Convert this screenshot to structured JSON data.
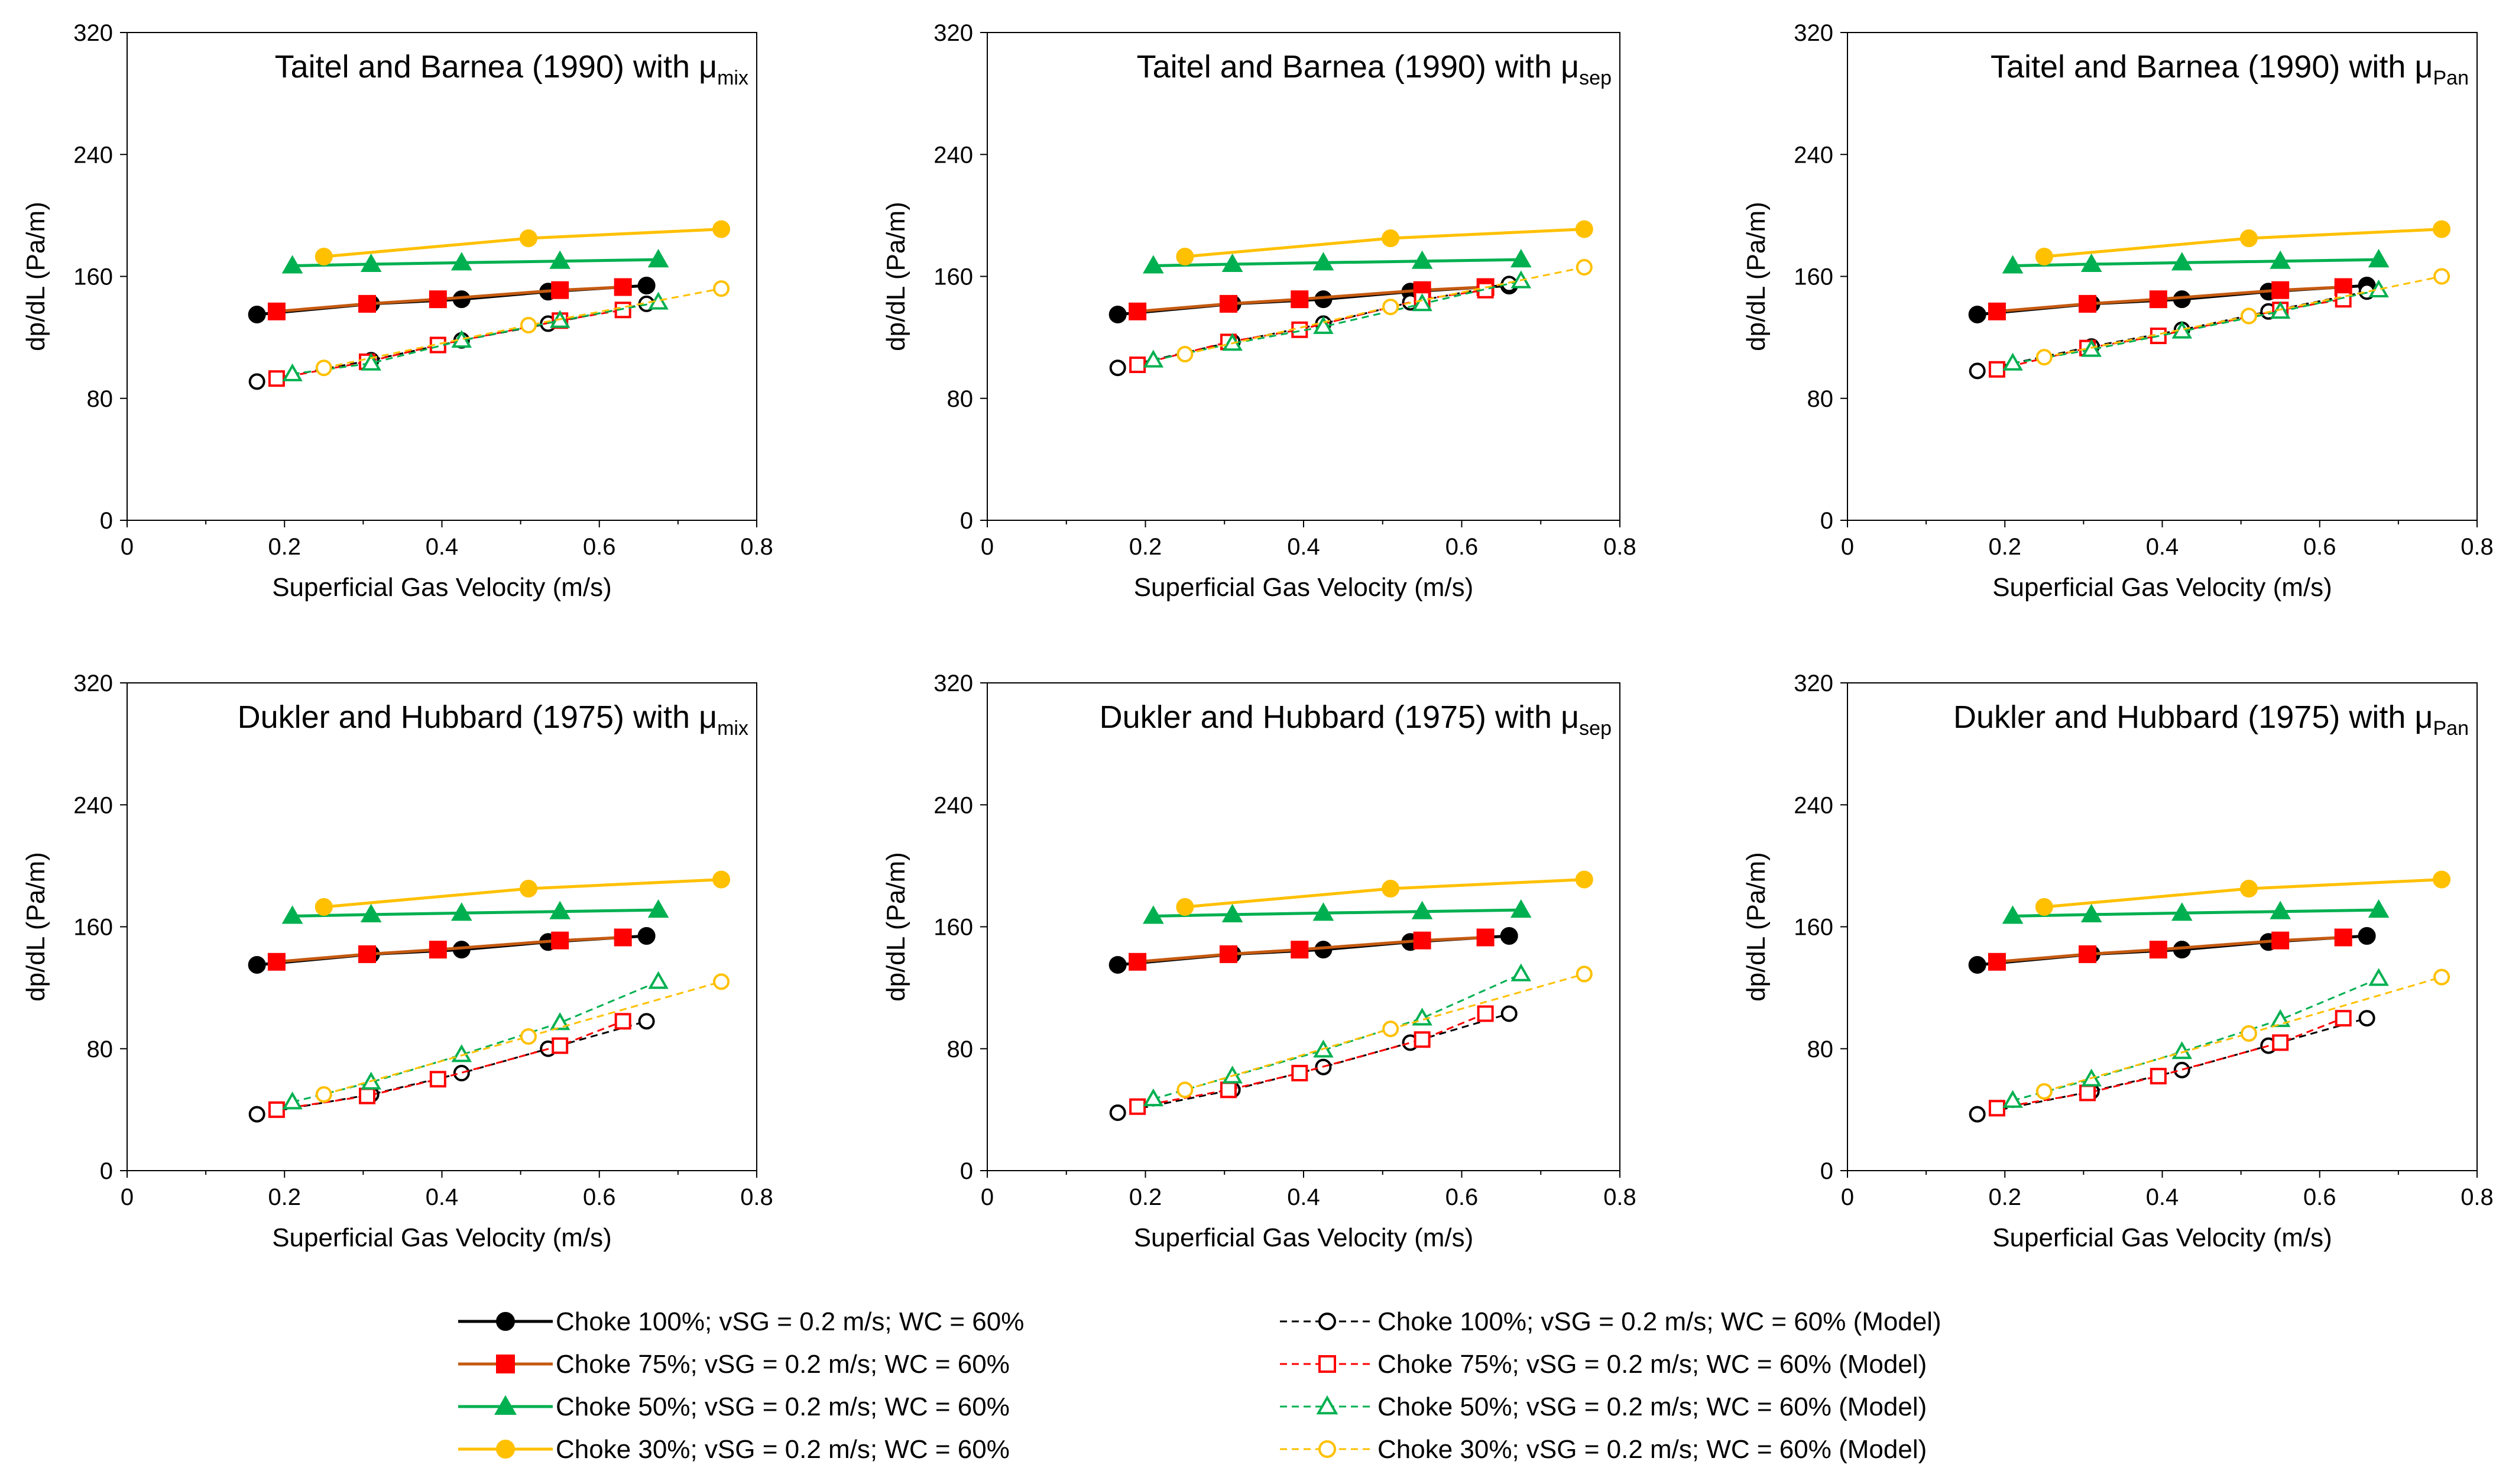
{
  "figure": {
    "legend": {
      "entries": [
        {
          "label": "Choke 100%; vSG = 0.2 m/s; WC = 60%",
          "color": "#000000",
          "marker": "circle",
          "filled": true,
          "dashed": false
        },
        {
          "label": "Choke 75%; vSG = 0.2 m/s; WC = 60%",
          "color": "#ff0000",
          "marker": "square",
          "filled": true,
          "dashed": false,
          "line_color": "#c55a11"
        },
        {
          "label": "Choke 50%; vSG = 0.2 m/s; WC = 60%",
          "color": "#00b050",
          "marker": "triangle",
          "filled": true,
          "dashed": false
        },
        {
          "label": "Choke 30%; vSG = 0.2 m/s; WC = 60%",
          "color": "#ffc000",
          "marker": "circle",
          "filled": true,
          "dashed": false
        },
        {
          "label": "Choke 100%; vSG = 0.2 m/s; WC = 60% (Model)",
          "color": "#000000",
          "marker": "circle",
          "filled": false,
          "dashed": true
        },
        {
          "label": "Choke 75%; vSG = 0.2 m/s; WC = 60% (Model)",
          "color": "#ff0000",
          "marker": "square",
          "filled": false,
          "dashed": true
        },
        {
          "label": "Choke 50%; vSG = 0.2 m/s; WC = 60% (Model)",
          "color": "#00b050",
          "marker": "triangle",
          "filled": false,
          "dashed": true
        },
        {
          "label": "Choke 30%; vSG = 0.2 m/s; WC = 60% (Model)",
          "color": "#ffc000",
          "marker": "circle",
          "filled": false,
          "dashed": true
        }
      ]
    }
  },
  "chart_data": [
    {
      "type": "line",
      "title": "Taitel and Barnea (1990) with μ",
      "title_subscript": "mix",
      "xlabel": "Superficial Gas Velocity (m/s)",
      "ylabel": "dp/dL  (Pa/m)",
      "xlim": [
        0,
        0.8
      ],
      "ylim": [
        0,
        320
      ],
      "xticks": [
        "0",
        "0.2",
        "0.4",
        "0.6",
        "0.8"
      ],
      "yticks": [
        "0",
        "80",
        "160",
        "240",
        "320"
      ],
      "series": [
        {
          "name": "Choke 100%",
          "x": [
            0.165,
            0.31,
            0.425,
            0.535,
            0.66
          ],
          "y": [
            135,
            142,
            145,
            150,
            154
          ]
        },
        {
          "name": "Choke 75%",
          "x": [
            0.19,
            0.305,
            0.395,
            0.55,
            0.63
          ],
          "y": [
            137,
            142,
            145,
            151,
            153
          ]
        },
        {
          "name": "Choke 50%",
          "x": [
            0.21,
            0.31,
            0.425,
            0.55,
            0.675
          ],
          "y": [
            167,
            168,
            169,
            170,
            171
          ]
        },
        {
          "name": "Choke 30%",
          "x": [
            0.25,
            0.51,
            0.755
          ],
          "y": [
            173,
            185,
            191
          ]
        },
        {
          "name": "Choke 100% (Model)",
          "x": [
            0.165,
            0.31,
            0.425,
            0.535,
            0.66
          ],
          "y": [
            91,
            105,
            118,
            129,
            142
          ]
        },
        {
          "name": "Choke 75% (Model)",
          "x": [
            0.19,
            0.305,
            0.395,
            0.55,
            0.63
          ],
          "y": [
            93,
            104,
            115,
            131,
            138
          ]
        },
        {
          "name": "Choke 50% (Model)",
          "x": [
            0.21,
            0.31,
            0.425,
            0.55,
            0.675
          ],
          "y": [
            96,
            103,
            118,
            131,
            143
          ]
        },
        {
          "name": "Choke 30% (Model)",
          "x": [
            0.25,
            0.51,
            0.755
          ],
          "y": [
            100,
            128,
            152
          ]
        }
      ]
    },
    {
      "type": "line",
      "title": "Taitel and Barnea (1990) with μ",
      "title_subscript": "sep",
      "xlabel": "Superficial Gas Velocity (m/s)",
      "ylabel": "dp/dL  (Pa/m)",
      "xlim": [
        0,
        0.8
      ],
      "ylim": [
        0,
        320
      ],
      "xticks": [
        "0",
        "0.2",
        "0.4",
        "0.6",
        "0.8"
      ],
      "yticks": [
        "0",
        "80",
        "160",
        "240",
        "320"
      ],
      "series": [
        {
          "name": "Choke 100%",
          "x": [
            0.165,
            0.31,
            0.425,
            0.535,
            0.66
          ],
          "y": [
            135,
            142,
            145,
            150,
            154
          ]
        },
        {
          "name": "Choke 75%",
          "x": [
            0.19,
            0.305,
            0.395,
            0.55,
            0.63
          ],
          "y": [
            137,
            142,
            145,
            151,
            153
          ]
        },
        {
          "name": "Choke 50%",
          "x": [
            0.21,
            0.31,
            0.425,
            0.55,
            0.675
          ],
          "y": [
            167,
            168,
            169,
            170,
            171
          ]
        },
        {
          "name": "Choke 30%",
          "x": [
            0.25,
            0.51,
            0.755
          ],
          "y": [
            173,
            185,
            191
          ]
        },
        {
          "name": "Choke 100% (Model)",
          "x": [
            0.165,
            0.31,
            0.425,
            0.535,
            0.66
          ],
          "y": [
            100,
            117,
            129,
            143,
            155
          ]
        },
        {
          "name": "Choke 75% (Model)",
          "x": [
            0.19,
            0.305,
            0.395,
            0.55,
            0.63
          ],
          "y": [
            102,
            117,
            125,
            145,
            151
          ]
        },
        {
          "name": "Choke 50% (Model)",
          "x": [
            0.21,
            0.31,
            0.425,
            0.55,
            0.675
          ],
          "y": [
            105,
            116,
            127,
            142,
            157
          ]
        },
        {
          "name": "Choke 30% (Model)",
          "x": [
            0.25,
            0.51,
            0.755
          ],
          "y": [
            109,
            140,
            166
          ]
        }
      ]
    },
    {
      "type": "line",
      "title": "Taitel and Barnea (1990) with μ",
      "title_subscript": "Pan",
      "xlabel": "Superficial Gas Velocity (m/s)",
      "ylabel": "dp/dL  (Pa/m)",
      "xlim": [
        0,
        0.8
      ],
      "ylim": [
        0,
        320
      ],
      "xticks": [
        "0",
        "0.2",
        "0.4",
        "0.6",
        "0.8"
      ],
      "yticks": [
        "0",
        "80",
        "160",
        "240",
        "320"
      ],
      "series": [
        {
          "name": "Choke 100%",
          "x": [
            0.165,
            0.31,
            0.425,
            0.535,
            0.66
          ],
          "y": [
            135,
            142,
            145,
            150,
            154
          ]
        },
        {
          "name": "Choke 75%",
          "x": [
            0.19,
            0.305,
            0.395,
            0.55,
            0.63
          ],
          "y": [
            137,
            142,
            145,
            151,
            153
          ]
        },
        {
          "name": "Choke 50%",
          "x": [
            0.21,
            0.31,
            0.425,
            0.55,
            0.675
          ],
          "y": [
            167,
            168,
            169,
            170,
            171
          ]
        },
        {
          "name": "Choke 30%",
          "x": [
            0.25,
            0.51,
            0.755
          ],
          "y": [
            173,
            185,
            191
          ]
        },
        {
          "name": "Choke 100% (Model)",
          "x": [
            0.165,
            0.31,
            0.425,
            0.535,
            0.66
          ],
          "y": [
            98,
            114,
            125,
            137,
            150
          ]
        },
        {
          "name": "Choke 75% (Model)",
          "x": [
            0.19,
            0.305,
            0.395,
            0.55,
            0.63
          ],
          "y": [
            99,
            113,
            121,
            138,
            145
          ]
        },
        {
          "name": "Choke 50% (Model)",
          "x": [
            0.21,
            0.31,
            0.425,
            0.55,
            0.675
          ],
          "y": [
            103,
            112,
            124,
            137,
            151
          ]
        },
        {
          "name": "Choke 30% (Model)",
          "x": [
            0.25,
            0.51,
            0.755
          ],
          "y": [
            107,
            134,
            160
          ]
        }
      ]
    },
    {
      "type": "line",
      "title": "Dukler and Hubbard  (1975) with μ",
      "title_subscript": "mix",
      "xlabel": "Superficial Gas Velocity (m/s)",
      "ylabel": "dp/dL  (Pa/m)",
      "xlim": [
        0,
        0.8
      ],
      "ylim": [
        0,
        320
      ],
      "xticks": [
        "0",
        "0.2",
        "0.4",
        "0.6",
        "0.8"
      ],
      "yticks": [
        "0",
        "80",
        "160",
        "240",
        "320"
      ],
      "series": [
        {
          "name": "Choke 100%",
          "x": [
            0.165,
            0.31,
            0.425,
            0.535,
            0.66
          ],
          "y": [
            135,
            142,
            145,
            150,
            154
          ]
        },
        {
          "name": "Choke 75%",
          "x": [
            0.19,
            0.305,
            0.395,
            0.55,
            0.63
          ],
          "y": [
            137,
            142,
            145,
            151,
            153
          ]
        },
        {
          "name": "Choke 50%",
          "x": [
            0.21,
            0.31,
            0.425,
            0.55,
            0.675
          ],
          "y": [
            167,
            168,
            169,
            170,
            171
          ]
        },
        {
          "name": "Choke 30%",
          "x": [
            0.25,
            0.51,
            0.755
          ],
          "y": [
            173,
            185,
            191
          ]
        },
        {
          "name": "Choke 100% (Model)",
          "x": [
            0.165,
            0.31,
            0.425,
            0.535,
            0.66
          ],
          "y": [
            37,
            50,
            64,
            80,
            98
          ]
        },
        {
          "name": "Choke 75% (Model)",
          "x": [
            0.19,
            0.305,
            0.395,
            0.55,
            0.63
          ],
          "y": [
            40,
            49,
            60,
            82,
            98
          ]
        },
        {
          "name": "Choke 50% (Model)",
          "x": [
            0.21,
            0.31,
            0.425,
            0.55,
            0.675
          ],
          "y": [
            45,
            58,
            76,
            97,
            124
          ]
        },
        {
          "name": "Choke 30% (Model)",
          "x": [
            0.25,
            0.51,
            0.755
          ],
          "y": [
            50,
            88,
            124
          ]
        }
      ]
    },
    {
      "type": "line",
      "title": "Dukler and Hubbard  (1975) with μ",
      "title_subscript": "sep",
      "xlabel": "Superficial Gas Velocity (m/s)",
      "ylabel": "dp/dL  (Pa/m)",
      "xlim": [
        0,
        0.8
      ],
      "ylim": [
        0,
        320
      ],
      "xticks": [
        "0",
        "0.2",
        "0.4",
        "0.6",
        "0.8"
      ],
      "yticks": [
        "0",
        "80",
        "160",
        "240",
        "320"
      ],
      "series": [
        {
          "name": "Choke 100%",
          "x": [
            0.165,
            0.31,
            0.425,
            0.535,
            0.66
          ],
          "y": [
            135,
            142,
            145,
            150,
            154
          ]
        },
        {
          "name": "Choke 75%",
          "x": [
            0.19,
            0.305,
            0.395,
            0.55,
            0.63
          ],
          "y": [
            137,
            142,
            145,
            151,
            153
          ]
        },
        {
          "name": "Choke 50%",
          "x": [
            0.21,
            0.31,
            0.425,
            0.55,
            0.675
          ],
          "y": [
            167,
            168,
            169,
            170,
            171
          ]
        },
        {
          "name": "Choke 30%",
          "x": [
            0.25,
            0.51,
            0.755
          ],
          "y": [
            173,
            185,
            191
          ]
        },
        {
          "name": "Choke 100% (Model)",
          "x": [
            0.165,
            0.31,
            0.425,
            0.535,
            0.66
          ],
          "y": [
            38,
            53,
            68,
            84,
            103
          ]
        },
        {
          "name": "Choke 75% (Model)",
          "x": [
            0.19,
            0.305,
            0.395,
            0.55,
            0.63
          ],
          "y": [
            42,
            53,
            64,
            86,
            103
          ]
        },
        {
          "name": "Choke 50% (Model)",
          "x": [
            0.21,
            0.31,
            0.425,
            0.55,
            0.675
          ],
          "y": [
            47,
            62,
            79,
            100,
            129
          ]
        },
        {
          "name": "Choke 30% (Model)",
          "x": [
            0.25,
            0.51,
            0.755
          ],
          "y": [
            53,
            93,
            129
          ]
        }
      ]
    },
    {
      "type": "line",
      "title": "Dukler and Hubbard  (1975) with μ",
      "title_subscript": "Pan",
      "xlabel": "Superficial Gas Velocity (m/s)",
      "ylabel": "dp/dL  (Pa/m)",
      "xlim": [
        0,
        0.8
      ],
      "ylim": [
        0,
        320
      ],
      "xticks": [
        "0",
        "0.2",
        "0.4",
        "0.6",
        "0.8"
      ],
      "yticks": [
        "0",
        "80",
        "160",
        "240",
        "320"
      ],
      "series": [
        {
          "name": "Choke 100%",
          "x": [
            0.165,
            0.31,
            0.425,
            0.535,
            0.66
          ],
          "y": [
            135,
            142,
            145,
            150,
            154
          ]
        },
        {
          "name": "Choke 75%",
          "x": [
            0.19,
            0.305,
            0.395,
            0.55,
            0.63
          ],
          "y": [
            137,
            142,
            145,
            151,
            153
          ]
        },
        {
          "name": "Choke 50%",
          "x": [
            0.21,
            0.31,
            0.425,
            0.55,
            0.675
          ],
          "y": [
            167,
            168,
            169,
            170,
            171
          ]
        },
        {
          "name": "Choke 30%",
          "x": [
            0.25,
            0.51,
            0.755
          ],
          "y": [
            173,
            185,
            191
          ]
        },
        {
          "name": "Choke 100% (Model)",
          "x": [
            0.165,
            0.31,
            0.425,
            0.535,
            0.66
          ],
          "y": [
            37,
            52,
            66,
            82,
            100
          ]
        },
        {
          "name": "Choke 75% (Model)",
          "x": [
            0.19,
            0.305,
            0.395,
            0.55,
            0.63
          ],
          "y": [
            41,
            51,
            62,
            84,
            100
          ]
        },
        {
          "name": "Choke 50% (Model)",
          "x": [
            0.21,
            0.31,
            0.425,
            0.55,
            0.675
          ],
          "y": [
            46,
            60,
            78,
            99,
            126
          ]
        },
        {
          "name": "Choke 30% (Model)",
          "x": [
            0.25,
            0.51,
            0.755
          ],
          "y": [
            52,
            90,
            127
          ]
        }
      ]
    }
  ]
}
